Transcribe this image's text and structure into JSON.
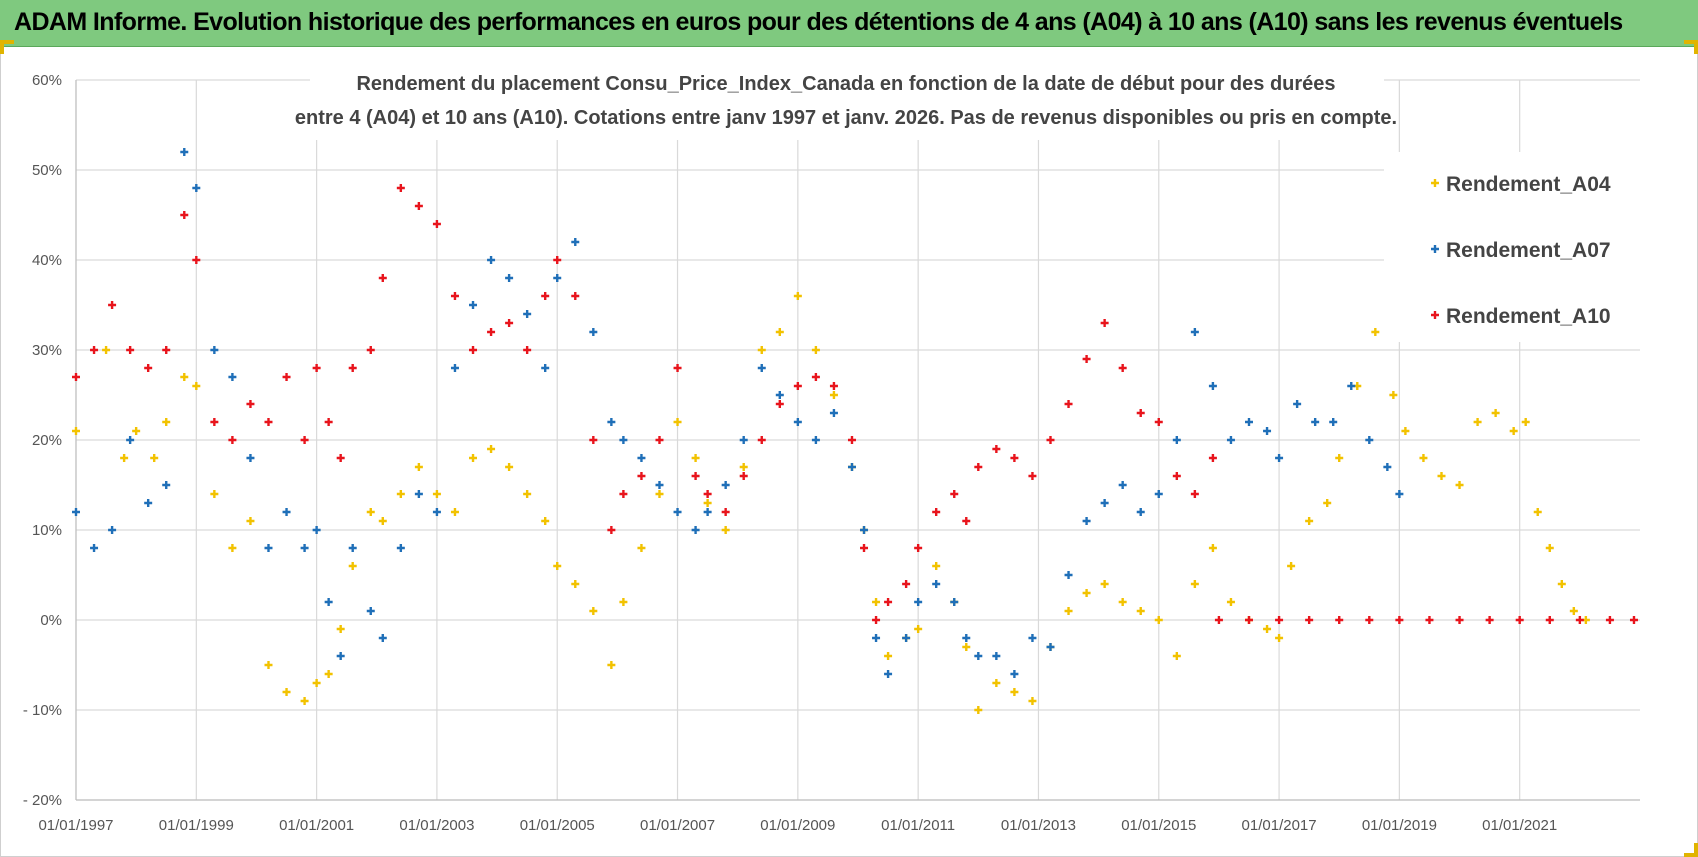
{
  "banner": {
    "title": "ADAM Informe. Evolution historique des performances en euros pour des détentions de 4 ans (A04) à 10 ans (A10) sans les revenus éventuels"
  },
  "colors": {
    "banner": "#7fc97f",
    "A04": "#f2c200",
    "A07": "#1f6fb8",
    "A10": "#e8141c",
    "grid": "#d9d9d9"
  },
  "chart_data": {
    "type": "scatter",
    "title_line1": "Rendement du placement Consu_Price_Index_Canada en fonction de la date de début pour des durées",
    "title_line2": "entre 4 (A04) et 10 ans (A10).  Cotations entre janv 1997 et janv. 2026. Pas de revenus disponibles ou pris en compte.",
    "xlabel": "",
    "ylabel": "",
    "x_ticks": [
      "01/01/1997",
      "01/01/1999",
      "01/01/2001",
      "01/01/2003",
      "01/01/2005",
      "01/01/2007",
      "01/01/2009",
      "01/01/2011",
      "01/01/2013",
      "01/01/2015",
      "01/01/2017",
      "01/01/2019",
      "01/01/2021"
    ],
    "y_ticks": [
      "60%",
      "50%",
      "40%",
      "30%",
      "20%",
      "10%",
      "0%",
      "- 10%",
      "- 20%"
    ],
    "xlim": [
      "1997-01-01",
      "2023-01-01"
    ],
    "ylim": [
      -20,
      60
    ],
    "marker": "plus",
    "grid": true,
    "legend_position": "top-right",
    "series": [
      {
        "name": "Rendement_A04",
        "color": "#f2c200",
        "points": [
          [
            1997.0,
            21
          ],
          [
            1997.5,
            30
          ],
          [
            1997.8,
            18
          ],
          [
            1998.0,
            21
          ],
          [
            1998.3,
            18
          ],
          [
            1998.5,
            22
          ],
          [
            1998.8,
            27
          ],
          [
            1999.0,
            26
          ],
          [
            1999.3,
            14
          ],
          [
            1999.6,
            8
          ],
          [
            1999.9,
            11
          ],
          [
            2000.2,
            -5
          ],
          [
            2000.5,
            -8
          ],
          [
            2000.8,
            -9
          ],
          [
            2001.0,
            -7
          ],
          [
            2001.2,
            -6
          ],
          [
            2001.4,
            -1
          ],
          [
            2001.6,
            6
          ],
          [
            2001.9,
            12
          ],
          [
            2002.1,
            11
          ],
          [
            2002.4,
            14
          ],
          [
            2002.7,
            17
          ],
          [
            2003.0,
            14
          ],
          [
            2003.3,
            12
          ],
          [
            2003.6,
            18
          ],
          [
            2003.9,
            19
          ],
          [
            2004.2,
            17
          ],
          [
            2004.5,
            14
          ],
          [
            2004.8,
            11
          ],
          [
            2005.0,
            6
          ],
          [
            2005.3,
            4
          ],
          [
            2005.6,
            1
          ],
          [
            2005.9,
            -5
          ],
          [
            2006.1,
            2
          ],
          [
            2006.4,
            8
          ],
          [
            2006.7,
            14
          ],
          [
            2007.0,
            22
          ],
          [
            2007.3,
            18
          ],
          [
            2007.5,
            13
          ],
          [
            2007.8,
            10
          ],
          [
            2008.1,
            17
          ],
          [
            2008.4,
            30
          ],
          [
            2008.7,
            32
          ],
          [
            2009.0,
            36
          ],
          [
            2009.3,
            30
          ],
          [
            2009.6,
            25
          ],
          [
            2009.9,
            17
          ],
          [
            2010.1,
            10
          ],
          [
            2010.3,
            2
          ],
          [
            2010.5,
            -4
          ],
          [
            2010.8,
            -2
          ],
          [
            2011.0,
            -1
          ],
          [
            2011.3,
            6
          ],
          [
            2011.6,
            2
          ],
          [
            2011.8,
            -3
          ],
          [
            2012.0,
            -10
          ],
          [
            2012.3,
            -7
          ],
          [
            2012.6,
            -8
          ],
          [
            2012.9,
            -9
          ],
          [
            2013.2,
            -3
          ],
          [
            2013.5,
            1
          ],
          [
            2013.8,
            3
          ],
          [
            2014.1,
            4
          ],
          [
            2014.4,
            2
          ],
          [
            2014.7,
            1
          ],
          [
            2015.0,
            0
          ],
          [
            2015.3,
            -4
          ],
          [
            2015.6,
            4
          ],
          [
            2015.9,
            8
          ],
          [
            2016.2,
            2
          ],
          [
            2016.5,
            0
          ],
          [
            2016.8,
            -1
          ],
          [
            2017.0,
            -2
          ],
          [
            2017.2,
            6
          ],
          [
            2017.5,
            11
          ],
          [
            2017.8,
            13
          ],
          [
            2018.0,
            18
          ],
          [
            2018.3,
            26
          ],
          [
            2018.6,
            32
          ],
          [
            2018.9,
            25
          ],
          [
            2019.1,
            21
          ],
          [
            2019.4,
            18
          ],
          [
            2019.7,
            16
          ],
          [
            2020.0,
            15
          ],
          [
            2020.3,
            22
          ],
          [
            2020.6,
            23
          ],
          [
            2020.9,
            21
          ],
          [
            2021.1,
            22
          ],
          [
            2021.3,
            12
          ],
          [
            2021.5,
            8
          ],
          [
            2021.7,
            4
          ],
          [
            2021.9,
            1
          ],
          [
            2022.1,
            0
          ]
        ]
      },
      {
        "name": "Rendement_A07",
        "color": "#1f6fb8",
        "points": [
          [
            1997.0,
            12
          ],
          [
            1997.3,
            8
          ],
          [
            1997.6,
            10
          ],
          [
            1997.9,
            20
          ],
          [
            1998.2,
            13
          ],
          [
            1998.5,
            15
          ],
          [
            1998.8,
            52
          ],
          [
            1999.0,
            48
          ],
          [
            1999.3,
            30
          ],
          [
            1999.6,
            27
          ],
          [
            1999.9,
            18
          ],
          [
            2000.2,
            8
          ],
          [
            2000.5,
            12
          ],
          [
            2000.8,
            8
          ],
          [
            2001.0,
            10
          ],
          [
            2001.2,
            2
          ],
          [
            2001.4,
            -4
          ],
          [
            2001.6,
            8
          ],
          [
            2001.9,
            1
          ],
          [
            2002.1,
            -2
          ],
          [
            2002.4,
            8
          ],
          [
            2002.7,
            14
          ],
          [
            2003.0,
            12
          ],
          [
            2003.3,
            28
          ],
          [
            2003.6,
            35
          ],
          [
            2003.9,
            40
          ],
          [
            2004.2,
            38
          ],
          [
            2004.5,
            34
          ],
          [
            2004.8,
            28
          ],
          [
            2005.0,
            38
          ],
          [
            2005.3,
            42
          ],
          [
            2005.6,
            32
          ],
          [
            2005.9,
            22
          ],
          [
            2006.1,
            20
          ],
          [
            2006.4,
            18
          ],
          [
            2006.7,
            15
          ],
          [
            2007.0,
            12
          ],
          [
            2007.3,
            10
          ],
          [
            2007.5,
            12
          ],
          [
            2007.8,
            15
          ],
          [
            2008.1,
            20
          ],
          [
            2008.4,
            28
          ],
          [
            2008.7,
            25
          ],
          [
            2009.0,
            22
          ],
          [
            2009.3,
            20
          ],
          [
            2009.6,
            23
          ],
          [
            2009.9,
            17
          ],
          [
            2010.1,
            10
          ],
          [
            2010.3,
            -2
          ],
          [
            2010.5,
            -6
          ],
          [
            2010.8,
            -2
          ],
          [
            2011.0,
            2
          ],
          [
            2011.3,
            4
          ],
          [
            2011.6,
            2
          ],
          [
            2011.8,
            -2
          ],
          [
            2012.0,
            -4
          ],
          [
            2012.3,
            -4
          ],
          [
            2012.6,
            -6
          ],
          [
            2012.9,
            -2
          ],
          [
            2013.2,
            -3
          ],
          [
            2013.5,
            5
          ],
          [
            2013.8,
            11
          ],
          [
            2014.1,
            13
          ],
          [
            2014.4,
            15
          ],
          [
            2014.7,
            12
          ],
          [
            2015.0,
            14
          ],
          [
            2015.3,
            20
          ],
          [
            2015.6,
            32
          ],
          [
            2015.9,
            26
          ],
          [
            2016.2,
            20
          ],
          [
            2016.5,
            22
          ],
          [
            2016.8,
            21
          ],
          [
            2017.0,
            18
          ],
          [
            2017.3,
            24
          ],
          [
            2017.6,
            22
          ],
          [
            2017.9,
            22
          ],
          [
            2018.2,
            26
          ],
          [
            2018.5,
            20
          ],
          [
            2018.8,
            17
          ],
          [
            2019.0,
            14
          ]
        ]
      },
      {
        "name": "Rendement_A10",
        "color": "#e8141c",
        "points": [
          [
            1997.0,
            27
          ],
          [
            1997.3,
            30
          ],
          [
            1997.6,
            35
          ],
          [
            1997.9,
            30
          ],
          [
            1998.2,
            28
          ],
          [
            1998.5,
            30
          ],
          [
            1998.8,
            45
          ],
          [
            1999.0,
            40
          ],
          [
            1999.3,
            22
          ],
          [
            1999.6,
            20
          ],
          [
            1999.9,
            24
          ],
          [
            2000.2,
            22
          ],
          [
            2000.5,
            27
          ],
          [
            2000.8,
            20
          ],
          [
            2001.0,
            28
          ],
          [
            2001.2,
            22
          ],
          [
            2001.4,
            18
          ],
          [
            2001.6,
            28
          ],
          [
            2001.9,
            30
          ],
          [
            2002.1,
            38
          ],
          [
            2002.4,
            48
          ],
          [
            2002.7,
            46
          ],
          [
            2003.0,
            44
          ],
          [
            2003.3,
            36
          ],
          [
            2003.6,
            30
          ],
          [
            2003.9,
            32
          ],
          [
            2004.2,
            33
          ],
          [
            2004.5,
            30
          ],
          [
            2004.8,
            36
          ],
          [
            2005.0,
            40
          ],
          [
            2005.3,
            36
          ],
          [
            2005.6,
            20
          ],
          [
            2005.9,
            10
          ],
          [
            2006.1,
            14
          ],
          [
            2006.4,
            16
          ],
          [
            2006.7,
            20
          ],
          [
            2007.0,
            28
          ],
          [
            2007.3,
            16
          ],
          [
            2007.5,
            14
          ],
          [
            2007.8,
            12
          ],
          [
            2008.1,
            16
          ],
          [
            2008.4,
            20
          ],
          [
            2008.7,
            24
          ],
          [
            2009.0,
            26
          ],
          [
            2009.3,
            27
          ],
          [
            2009.6,
            26
          ],
          [
            2009.9,
            20
          ],
          [
            2010.1,
            8
          ],
          [
            2010.3,
            0
          ],
          [
            2010.5,
            2
          ],
          [
            2010.8,
            4
          ],
          [
            2011.0,
            8
          ],
          [
            2011.3,
            12
          ],
          [
            2011.6,
            14
          ],
          [
            2011.8,
            11
          ],
          [
            2012.0,
            17
          ],
          [
            2012.3,
            19
          ],
          [
            2012.6,
            18
          ],
          [
            2012.9,
            16
          ],
          [
            2013.2,
            20
          ],
          [
            2013.5,
            24
          ],
          [
            2013.8,
            29
          ],
          [
            2014.1,
            33
          ],
          [
            2014.4,
            28
          ],
          [
            2014.7,
            23
          ],
          [
            2015.0,
            22
          ],
          [
            2015.3,
            16
          ],
          [
            2015.6,
            14
          ],
          [
            2015.9,
            18
          ],
          [
            2016.0,
            0
          ],
          [
            2016.5,
            0
          ],
          [
            2017.0,
            0
          ],
          [
            2017.5,
            0
          ],
          [
            2018.0,
            0
          ],
          [
            2018.5,
            0
          ],
          [
            2019.0,
            0
          ],
          [
            2019.5,
            0
          ],
          [
            2020.0,
            0
          ],
          [
            2020.5,
            0
          ],
          [
            2021.0,
            0
          ],
          [
            2021.5,
            0
          ],
          [
            2022.0,
            0
          ],
          [
            2022.5,
            0
          ],
          [
            2022.9,
            0
          ]
        ]
      }
    ]
  }
}
